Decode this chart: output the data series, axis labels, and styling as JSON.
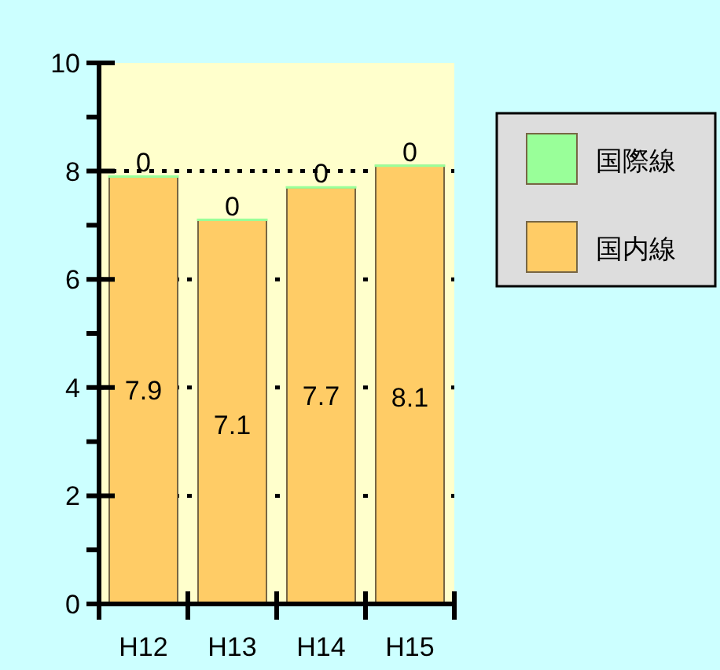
{
  "chart_data": {
    "type": "bar",
    "stacked": true,
    "categories": [
      "H12",
      "H13",
      "H14",
      "H15"
    ],
    "series": [
      {
        "name": "国内線",
        "color": "#ffcc66",
        "values": [
          7.9,
          7.1,
          7.7,
          8.1
        ]
      },
      {
        "name": "国際線",
        "color": "#99ff99",
        "values": [
          0,
          0,
          0,
          0
        ]
      }
    ],
    "ylim": [
      0,
      10
    ],
    "yticks": [
      0,
      {
        "value": 1,
        "label": null
      },
      2,
      {
        "value": 3,
        "label": null
      },
      4,
      {
        "value": 5,
        "label": null
      },
      6,
      {
        "value": 7,
        "label": null
      },
      8,
      {
        "value": 9,
        "label": null
      },
      10
    ],
    "grid": "y",
    "legend": "right",
    "data_labels": true
  }
}
